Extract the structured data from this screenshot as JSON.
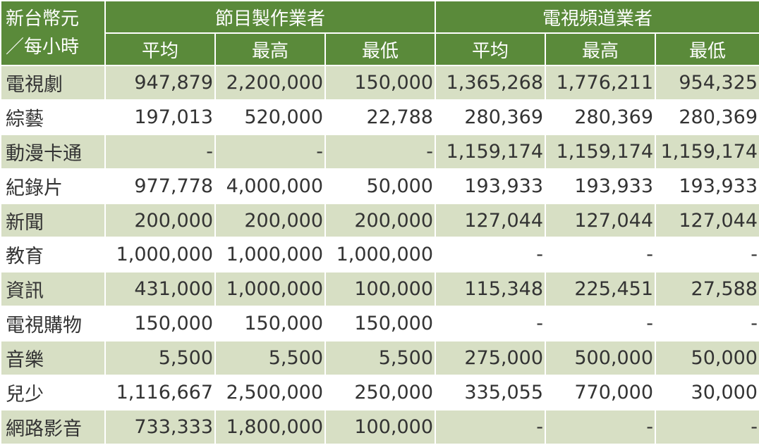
{
  "header": {
    "corner_line1": "新台幣元",
    "corner_line2": "／每小時",
    "group1": "節目製作業者",
    "group2": "電視頻道業者",
    "sub": [
      "平均",
      "最高",
      "最低",
      "平均",
      "最高",
      "最低"
    ]
  },
  "rows": [
    {
      "label": "電視劇",
      "values": [
        "947,879",
        "2,200,000",
        "150,000",
        "1,365,268",
        "1,776,211",
        "954,325"
      ]
    },
    {
      "label": "綜藝",
      "values": [
        "197,013",
        "520,000",
        "22,788",
        "280,369",
        "280,369",
        "280,369"
      ]
    },
    {
      "label": "動漫卡通",
      "values": [
        "-",
        "-",
        "-",
        "1,159,174",
        "1,159,174",
        "1,159,174"
      ]
    },
    {
      "label": "紀錄片",
      "values": [
        "977,778",
        "4,000,000",
        "50,000",
        "193,933",
        "193,933",
        "193,933"
      ]
    },
    {
      "label": "新聞",
      "values": [
        "200,000",
        "200,000",
        "200,000",
        "127,044",
        "127,044",
        "127,044"
      ]
    },
    {
      "label": "教育",
      "values": [
        "1,000,000",
        "1,000,000",
        "1,000,000",
        "-",
        "-",
        "-"
      ]
    },
    {
      "label": "資訊",
      "values": [
        "431,000",
        "1,000,000",
        "100,000",
        "115,348",
        "225,451",
        "27,588"
      ]
    },
    {
      "label": "電視購物",
      "values": [
        "150,000",
        "150,000",
        "150,000",
        "-",
        "-",
        "-"
      ]
    },
    {
      "label": "音樂",
      "values": [
        "5,500",
        "5,500",
        "5,500",
        "275,000",
        "500,000",
        "50,000"
      ]
    },
    {
      "label": "兒少",
      "values": [
        "1,116,667",
        "2,500,000",
        "250,000",
        "335,055",
        "770,000",
        "30,000"
      ]
    },
    {
      "label": "網路影音",
      "values": [
        "733,333",
        "1,800,000",
        "100,000",
        "-",
        "-",
        "-"
      ]
    }
  ],
  "colors": {
    "header_green": "#5a8a3a",
    "row_shade": "#d7dfc4",
    "text": "#333333"
  }
}
